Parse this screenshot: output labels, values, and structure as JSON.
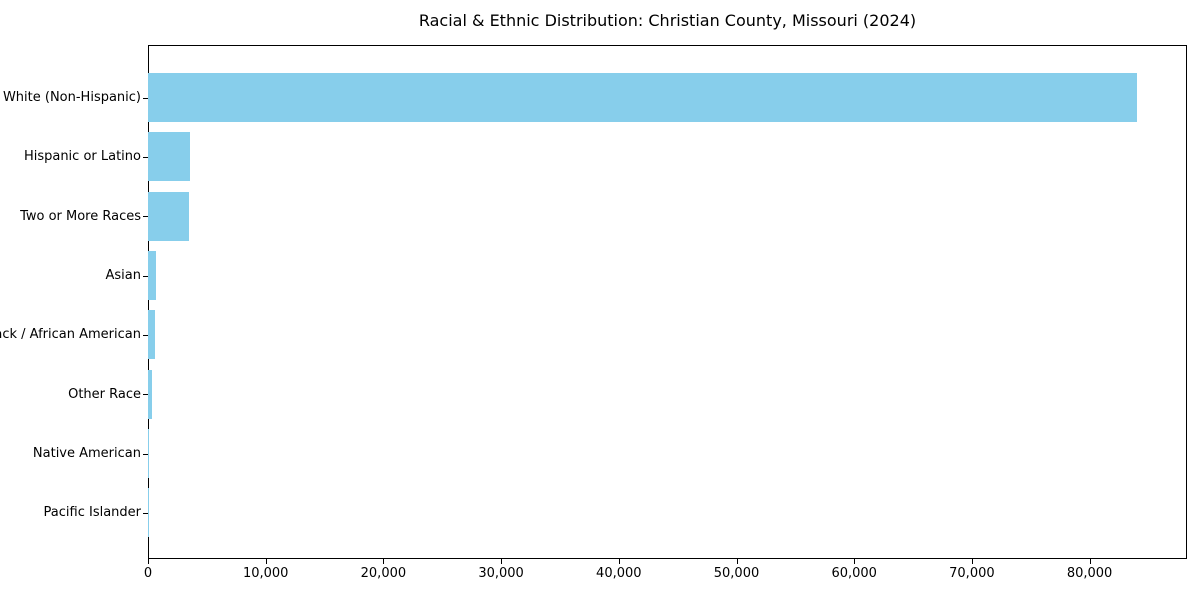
{
  "chart_data": {
    "type": "bar",
    "orientation": "horizontal",
    "title": "Racial & Ethnic Distribution: Christian County, Missouri (2024)",
    "xlabel": "",
    "ylabel": "",
    "categories": [
      "White (Non-Hispanic)",
      "Hispanic or Latino",
      "Two or More Races",
      "Asian",
      "Black / African American",
      "Other Race",
      "Native American",
      "Pacific Islander"
    ],
    "values": [
      84000,
      3600,
      3500,
      680,
      630,
      320,
      100,
      50
    ],
    "xlim": [
      0,
      88275
    ],
    "x_ticks": [
      0,
      10000,
      20000,
      30000,
      40000,
      50000,
      60000,
      70000,
      80000
    ],
    "x_tick_labels": [
      "0",
      "10,000",
      "20,000",
      "30,000",
      "40,000",
      "50,000",
      "60,000",
      "70,000",
      "80,000"
    ],
    "grid": false,
    "legend": "none",
    "bar_color": "#87CEEB",
    "spine_color": "#000000",
    "text_color": "#000000"
  }
}
